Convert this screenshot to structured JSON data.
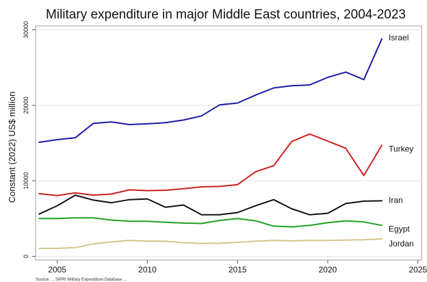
{
  "chart_data": {
    "type": "line",
    "title": "Military expenditure in major Middle East countries, 2004-2023",
    "ylabel": "Constant (2022) US$ million",
    "xlabel": "",
    "xlim": [
      2003.8,
      2025.2
    ],
    "ylim": [
      -500,
      30500
    ],
    "x_ticks": [
      "2005",
      "2010",
      "2015",
      "2020",
      "2025"
    ],
    "y_ticks": [
      "0",
      "10000",
      "20000",
      "30000"
    ],
    "grid": true,
    "legend": "inline labels at right end of each line",
    "x": [
      2004,
      2005,
      2006,
      2007,
      2008,
      2009,
      2010,
      2011,
      2012,
      2013,
      2014,
      2015,
      2016,
      2017,
      2018,
      2019,
      2020,
      2021,
      2022,
      2023
    ],
    "series": [
      {
        "name": "Israel",
        "color": "#1a1aa8",
        "values": [
          15100,
          15450,
          15700,
          17600,
          17800,
          17450,
          17550,
          17700,
          18050,
          18600,
          20050,
          20300,
          21350,
          22300,
          22600,
          22700,
          23700,
          24400,
          23400,
          28800
        ]
      },
      {
        "name": "Turkey",
        "color": "#cc1f1f",
        "values": [
          8300,
          8050,
          8400,
          8100,
          8250,
          8800,
          8700,
          8750,
          8950,
          9200,
          9250,
          9500,
          11200,
          12000,
          15200,
          16200,
          15250,
          14300,
          10700,
          14700
        ]
      },
      {
        "name": "Iran",
        "color": "#111111",
        "values": [
          5600,
          6700,
          8100,
          7450,
          7100,
          7500,
          7600,
          6500,
          6800,
          5500,
          5500,
          5800,
          6700,
          7500,
          6300,
          5500,
          5700,
          7000,
          7300,
          7350
        ]
      },
      {
        "name": "Egypt",
        "color": "#20a020",
        "values": [
          5000,
          5000,
          5100,
          5100,
          4800,
          4650,
          4650,
          4500,
          4400,
          4350,
          4750,
          5000,
          4700,
          4000,
          3900,
          4100,
          4450,
          4700,
          4550,
          4100
        ]
      },
      {
        "name": "Jordan",
        "color": "#d4c48c",
        "values": [
          1050,
          1050,
          1150,
          1650,
          1900,
          2100,
          2000,
          2000,
          1800,
          1700,
          1750,
          1850,
          2000,
          2100,
          2050,
          2100,
          2100,
          2150,
          2200,
          2300
        ]
      }
    ]
  },
  "footer_note": "Source: ... SIPRI Military Expenditure Database ..."
}
